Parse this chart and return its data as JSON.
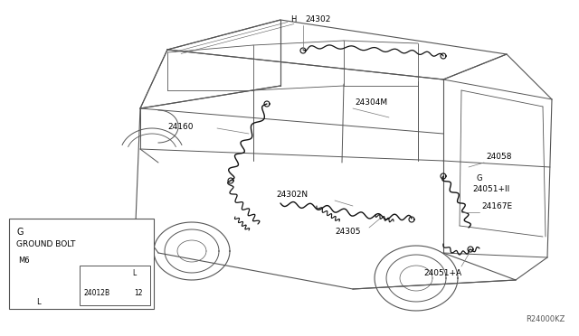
{
  "bg_color": "#ffffff",
  "line_color": "#555555",
  "wire_color": "#111111",
  "label_color": "#000000",
  "ref_code": "R24000KZ",
  "label_fontsize": 6.5,
  "ref_fontsize": 6,
  "inset_part": "24012B",
  "inset_qty": "12",
  "inset_G": "G",
  "inset_ground": "GROUND BOLT",
  "inset_M6": "M6",
  "inset_L": "L"
}
